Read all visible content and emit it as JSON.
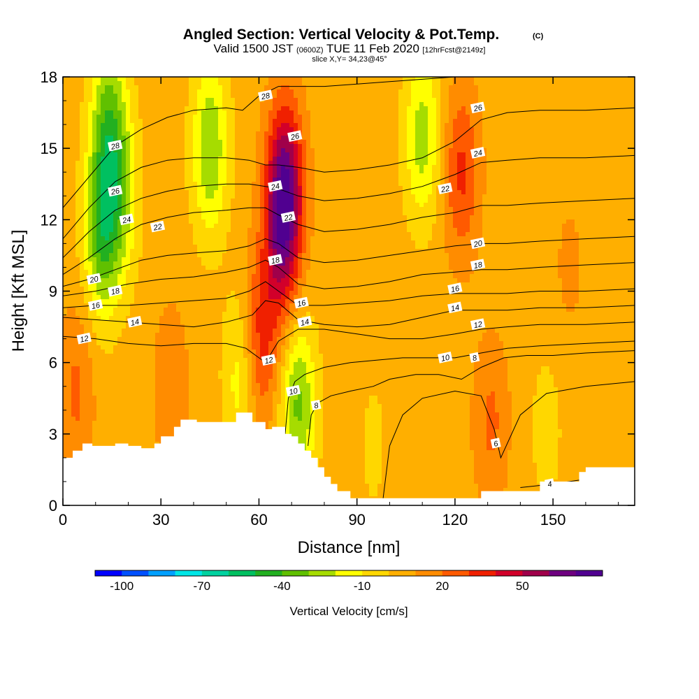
{
  "chart_data": {
    "type": "heatmap",
    "title": "Angled Section: Vertical Velocity & Pot.Temp.",
    "title_mark": "(C)",
    "subtitle": {
      "prefix": "Valid 1500 JST",
      "utc": "(0600Z)",
      "date": "TUE 11 Feb 2020",
      "forecast": "[12hrFcst@2149z]"
    },
    "slice": "slice X,Y= 34,23@45°",
    "xlabel": "Distance [nm]",
    "ylabel": "Height [Kft MSL]",
    "xlim": [
      0,
      175
    ],
    "ylim": [
      0,
      18
    ],
    "xticks": [
      0,
      30,
      60,
      90,
      120,
      150
    ],
    "yticks": [
      0,
      3,
      6,
      9,
      12,
      15,
      18
    ],
    "colorbar": {
      "label": "Vertical Velocity [cm/s]",
      "levels": [
        -100,
        -90,
        -80,
        -70,
        -60,
        -50,
        -40,
        -30,
        -20,
        -10,
        0,
        10,
        20,
        30,
        40,
        50,
        60,
        70
      ],
      "colors": [
        "#0000ff",
        "#0050ff",
        "#00a0ff",
        "#00e6e6",
        "#00d2a0",
        "#00c060",
        "#22b020",
        "#60c000",
        "#a6dc00",
        "#ffff00",
        "#ffd700",
        "#ffaf00",
        "#ff8c00",
        "#ff5a00",
        "#f02000",
        "#d2002a",
        "#a0004a",
        "#6e0080",
        "#500090"
      ],
      "tick_labels": [
        "-100",
        "-70",
        "-40",
        "-10",
        "20",
        "50"
      ],
      "tick_values": [
        -100,
        -70,
        -40,
        -10,
        20,
        50
      ]
    },
    "terrain": {
      "x": [
        0,
        3,
        3,
        6,
        6,
        9,
        9,
        16,
        16,
        20,
        20,
        24,
        24,
        28,
        28,
        30,
        30,
        34,
        34,
        36,
        36,
        41,
        41,
        53,
        53,
        58,
        58,
        62,
        62,
        64,
        64,
        68,
        68,
        70,
        70,
        72,
        72,
        74,
        74,
        76,
        76,
        78,
        78,
        80,
        80,
        82,
        82,
        84,
        84,
        88,
        88,
        90,
        90,
        102,
        102,
        110,
        110,
        128,
        128,
        132,
        132,
        142,
        142,
        146,
        146,
        152,
        152,
        158,
        158,
        160,
        160,
        164,
        164,
        175
      ],
      "y": [
        2.0,
        2.0,
        2.3,
        2.3,
        2.6,
        2.6,
        2.5,
        2.5,
        2.6,
        2.6,
        2.5,
        2.5,
        2.4,
        2.4,
        2.6,
        2.6,
        2.9,
        2.9,
        3.3,
        3.3,
        3.6,
        3.6,
        3.5,
        3.5,
        3.9,
        3.9,
        3.5,
        3.5,
        3.2,
        3.2,
        3.3,
        3.3,
        3.0,
        3.0,
        2.9,
        2.9,
        2.6,
        2.6,
        2.3,
        2.3,
        2.0,
        2.0,
        1.6,
        1.6,
        1.2,
        1.2,
        0.9,
        0.9,
        0.6,
        0.6,
        0.3,
        0.3,
        0.3,
        0.3,
        0.3,
        0.3,
        0.3,
        0.3,
        0.6,
        0.6,
        0.6,
        0.6,
        0.6,
        0.6,
        1.0,
        1.0,
        1.0,
        1.0,
        1.4,
        1.4,
        1.6,
        1.6,
        1.6,
        1.6
      ]
    },
    "velocity_features": [
      {
        "x": 12,
        "y": 11.5,
        "value": -38
      },
      {
        "x": 14,
        "y": 16.0,
        "value": -32
      },
      {
        "x": 18,
        "y": 13.0,
        "value": -18
      },
      {
        "x": 45,
        "y": 15.0,
        "value": -30
      },
      {
        "x": 110,
        "y": 15.5,
        "value": -25
      },
      {
        "x": 68,
        "y": 13.5,
        "value": 58
      },
      {
        "x": 67,
        "y": 11.0,
        "value": 40
      },
      {
        "x": 60,
        "y": 6.8,
        "value": 38
      },
      {
        "x": 122,
        "y": 14.0,
        "value": 32
      },
      {
        "x": 4,
        "y": 4.8,
        "value": 22
      },
      {
        "x": 131,
        "y": 3.5,
        "value": 22
      },
      {
        "x": 33,
        "y": 5.0,
        "value": 18
      },
      {
        "x": 72,
        "y": 4.2,
        "value": -32
      },
      {
        "x": 55,
        "y": 5.5,
        "value": -20
      },
      {
        "x": 155,
        "y": 10.0,
        "value": 12
      },
      {
        "x": 95,
        "y": 2.5,
        "value": -2
      },
      {
        "x": 148,
        "y": 3.2,
        "value": -4
      }
    ],
    "theta_contours": [
      {
        "value": 4,
        "x": [
          140,
          150,
          160,
          175
        ],
        "y": [
          0.75,
          0.9,
          1.1,
          1.3
        ],
        "label": {
          "text": "4",
          "x": 149,
          "y": 0.9
        }
      },
      {
        "value": 6,
        "x": [
          98,
          100,
          104,
          110,
          120,
          128,
          132,
          134,
          140,
          148,
          160,
          175
        ],
        "y": [
          0.3,
          2.5,
          3.8,
          4.5,
          4.8,
          4.6,
          3.2,
          2.0,
          3.8,
          4.7,
          5.0,
          5.2
        ],
        "label": {
          "text": "6",
          "x": 132.5,
          "y": 2.6
        }
      },
      {
        "value": 8,
        "x": [
          75,
          76,
          78,
          82,
          88,
          95,
          100,
          108,
          115,
          122,
          128,
          135,
          142,
          150,
          160,
          175
        ],
        "y": [
          2.5,
          3.8,
          4.3,
          4.6,
          4.8,
          5.0,
          5.3,
          5.5,
          5.5,
          5.3,
          5.8,
          6.2,
          6.3,
          6.3,
          6.4,
          6.5
        ],
        "label": {
          "text": "8",
          "x": 126,
          "y": 6.2
        }
      },
      {
        "value": 10,
        "x": [
          68,
          69,
          71,
          74,
          80,
          88,
          96,
          104,
          112,
          120,
          128,
          136,
          146,
          160,
          175
        ],
        "y": [
          3.0,
          4.5,
          5.2,
          5.5,
          5.8,
          6.0,
          6.1,
          6.2,
          6.2,
          6.2,
          6.4,
          6.6,
          6.7,
          6.8,
          6.9
        ],
        "label": {
          "text": "10",
          "x": 117,
          "y": 6.2
        }
      },
      {
        "value": 12,
        "x": [
          0,
          10,
          20,
          30,
          40,
          50,
          56,
          60,
          62,
          66,
          72,
          80,
          90,
          100,
          110,
          120,
          128,
          136,
          146,
          160,
          175
        ],
        "y": [
          7.1,
          7.0,
          6.8,
          6.7,
          6.8,
          6.8,
          6.6,
          6.2,
          6.0,
          6.9,
          7.4,
          7.4,
          7.2,
          7.0,
          7.0,
          7.2,
          7.4,
          7.5,
          7.6,
          7.6,
          7.7
        ],
        "label": {
          "text": "12",
          "x": 63,
          "y": 6.1
        }
      },
      {
        "value": 14,
        "x": [
          0,
          10,
          20,
          30,
          40,
          50,
          58,
          62,
          66,
          72,
          80,
          90,
          100,
          110,
          120,
          128,
          136,
          146,
          160,
          175
        ],
        "y": [
          7.9,
          7.8,
          7.7,
          7.6,
          7.5,
          7.7,
          8.0,
          8.6,
          8.5,
          7.8,
          7.6,
          7.5,
          7.6,
          7.9,
          8.2,
          8.2,
          8.2,
          8.3,
          8.3,
          8.4
        ],
        "label": {
          "text": "14",
          "x": 74,
          "y": 7.7
        }
      },
      {
        "value": 16,
        "x": [
          0,
          10,
          20,
          30,
          40,
          50,
          57,
          62,
          66,
          72,
          80,
          90,
          100,
          110,
          120,
          128,
          136,
          146,
          160,
          175
        ],
        "y": [
          8.3,
          8.4,
          8.4,
          8.5,
          8.6,
          8.7,
          9.0,
          9.4,
          9.0,
          8.4,
          8.4,
          8.5,
          8.6,
          8.8,
          8.9,
          8.9,
          8.9,
          9.0,
          9.0,
          9.1
        ],
        "label": {
          "text": "16",
          "x": 73,
          "y": 8.5
        }
      },
      {
        "value": 18,
        "x": [
          0,
          10,
          20,
          30,
          40,
          50,
          57,
          62,
          66,
          72,
          80,
          90,
          100,
          110,
          120,
          128,
          136,
          146,
          160,
          175
        ],
        "y": [
          8.8,
          9.0,
          9.3,
          9.5,
          9.6,
          9.8,
          10.0,
          10.3,
          10.0,
          9.3,
          9.1,
          9.2,
          9.4,
          9.7,
          9.8,
          9.9,
          9.9,
          10.0,
          10.1,
          10.2
        ],
        "label": {
          "text": "18",
          "x": 65,
          "y": 10.3
        }
      },
      {
        "value": 20,
        "x": [
          0,
          8,
          16,
          24,
          32,
          40,
          50,
          57,
          62,
          66,
          72,
          80,
          90,
          100,
          110,
          120,
          128,
          136,
          146,
          160,
          175
        ],
        "y": [
          9.2,
          9.5,
          9.9,
          10.3,
          10.5,
          10.6,
          10.7,
          10.9,
          11.2,
          11.0,
          10.4,
          10.2,
          10.3,
          10.5,
          10.7,
          10.9,
          11.0,
          11.0,
          11.1,
          11.2,
          11.3
        ],
        "label": {
          "text": "20",
          "x": 127,
          "y": 11.0
        }
      },
      {
        "value": 22,
        "x": [
          0,
          8,
          16,
          24,
          32,
          40,
          50,
          57,
          62,
          66,
          72,
          80,
          90,
          100,
          110,
          120,
          128,
          136,
          146,
          160,
          175
        ],
        "y": [
          9.7,
          10.4,
          11.2,
          11.8,
          12.1,
          12.3,
          12.4,
          12.5,
          12.5,
          12.2,
          11.8,
          11.5,
          11.6,
          11.8,
          12.1,
          12.3,
          12.6,
          12.6,
          12.7,
          12.8,
          12.9
        ],
        "label": {
          "text": "22",
          "x": 69,
          "y": 12.1
        }
      },
      {
        "value": 24,
        "x": [
          0,
          8,
          16,
          24,
          32,
          40,
          50,
          57,
          62,
          66,
          72,
          80,
          90,
          100,
          110,
          120,
          128,
          136,
          146,
          160,
          175
        ],
        "y": [
          10.4,
          11.5,
          12.4,
          12.9,
          13.2,
          13.4,
          13.5,
          13.5,
          13.4,
          13.3,
          13.0,
          12.8,
          12.9,
          13.1,
          13.4,
          13.9,
          14.4,
          14.5,
          14.6,
          14.6,
          14.7
        ],
        "label": {
          "text": "24",
          "x": 127,
          "y": 14.8
        }
      },
      {
        "value": 26,
        "x": [
          0,
          8,
          16,
          24,
          32,
          40,
          50,
          57,
          62,
          66,
          72,
          80,
          90,
          100,
          110,
          120,
          128,
          136,
          146,
          160,
          175
        ],
        "y": [
          11.2,
          12.5,
          13.6,
          14.2,
          14.5,
          14.6,
          14.6,
          14.5,
          14.3,
          14.3,
          14.2,
          14.0,
          14.1,
          14.3,
          14.6,
          15.3,
          16.2,
          16.5,
          16.6,
          16.6,
          16.7
        ],
        "label": {
          "text": "26",
          "x": 127,
          "y": 16.7
        }
      },
      {
        "value": 28,
        "x": [
          0,
          8,
          16,
          24,
          32,
          40,
          50,
          55,
          60,
          66,
          72,
          80,
          90,
          100,
          110,
          120,
          130,
          140,
          150,
          160,
          175
        ],
        "y": [
          12.5,
          13.8,
          15.1,
          15.8,
          16.3,
          16.6,
          16.7,
          16.6,
          17.2,
          17.6,
          17.6,
          17.6,
          17.7,
          17.8,
          17.9,
          18.0,
          18.0,
          18.0,
          18.0,
          18.0,
          18.0
        ],
        "label": {
          "text": "28",
          "x": 62,
          "y": 17.2
        }
      }
    ],
    "extra_contour_labels": [
      {
        "text": "8",
        "x": 77.5,
        "y": 4.2
      },
      {
        "text": "10",
        "x": 70.5,
        "y": 4.8
      },
      {
        "text": "12",
        "x": 6.5,
        "y": 7.0
      },
      {
        "text": "14",
        "x": 22,
        "y": 7.7
      },
      {
        "text": "16",
        "x": 10,
        "y": 8.4
      },
      {
        "text": "18",
        "x": 16,
        "y": 9.0
      },
      {
        "text": "20",
        "x": 9.5,
        "y": 9.5
      },
      {
        "text": "24",
        "x": 19.5,
        "y": 12.0
      },
      {
        "text": "26",
        "x": 16,
        "y": 13.2
      },
      {
        "text": "28",
        "x": 16,
        "y": 15.1
      },
      {
        "text": "22",
        "x": 29,
        "y": 11.7
      },
      {
        "text": "24",
        "x": 65,
        "y": 13.4
      },
      {
        "text": "26",
        "x": 71,
        "y": 15.5
      },
      {
        "text": "16",
        "x": 120,
        "y": 9.1
      },
      {
        "text": "18",
        "x": 127,
        "y": 10.1
      },
      {
        "text": "22",
        "x": 117,
        "y": 13.3
      },
      {
        "text": "14",
        "x": 120,
        "y": 8.3
      },
      {
        "text": "12",
        "x": 127,
        "y": 7.6
      }
    ]
  }
}
